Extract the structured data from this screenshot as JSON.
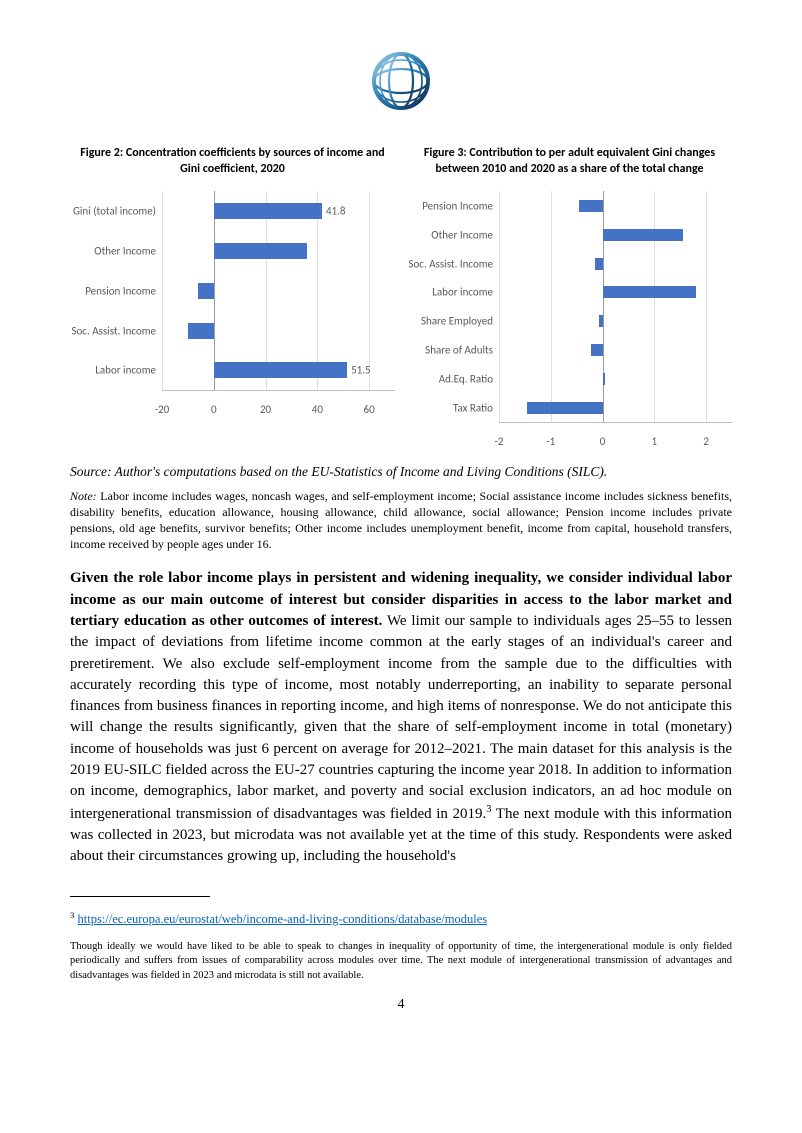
{
  "logo": {
    "name": "world-bank-globe-logo"
  },
  "figure2": {
    "title": "Figure 2: Concentration coefficients by sources of income and Gini coefficient, 2020",
    "type": "horizontal-bar",
    "xlim": [
      -20,
      70
    ],
    "xticks": [
      -20,
      0,
      20,
      40,
      60
    ],
    "bar_color": "#4472c4",
    "grid_color": "#e0e0e0",
    "axis_color": "#bfbfbf",
    "label_fontsize": 11,
    "label_color": "#595959",
    "rows": [
      {
        "label": "Gini (total income)",
        "value": 41.8,
        "show_value": "41.8"
      },
      {
        "label": "Other Income",
        "value": 36,
        "show_value": ""
      },
      {
        "label": "Pension Income",
        "value": -6,
        "show_value": ""
      },
      {
        "label": "Soc. Assist. Income",
        "value": -10,
        "show_value": ""
      },
      {
        "label": "Labor income",
        "value": 51.5,
        "show_value": "51.5"
      }
    ]
  },
  "figure3": {
    "title": "Figure 3: Contribution to per adult equivalent Gini changes between 2010 and 2020 as a share of the total change",
    "type": "horizontal-bar",
    "xlim": [
      -2,
      2.5
    ],
    "xticks": [
      -2,
      -1,
      0,
      1,
      2
    ],
    "bar_color": "#4472c4",
    "grid_color": "#e0e0e0",
    "axis_color": "#bfbfbf",
    "label_fontsize": 11,
    "label_color": "#595959",
    "rows": [
      {
        "label": "Pension Income",
        "value": -0.45
      },
      {
        "label": "Other Income",
        "value": 1.55
      },
      {
        "label": "Soc. Assist. Income",
        "value": -0.15
      },
      {
        "label": "Labor income",
        "value": 1.8
      },
      {
        "label": "Share Employed",
        "value": -0.07
      },
      {
        "label": "Share of Adults",
        "value": -0.22
      },
      {
        "label": "Ad.Eq. Ratio",
        "value": 0.05
      },
      {
        "label": "Tax Ratio",
        "value": -1.45
      }
    ]
  },
  "source": {
    "label": "Source:",
    "text": " Author's computations based on the EU-Statistics of Income and Living Conditions (SILC)."
  },
  "note": {
    "label": "Note:",
    "text": " Labor income includes wages, noncash wages, and self-employment income; Social assistance income includes sickness benefits, disability benefits, education allowance, housing allowance, child allowance, social allowance; Pension income includes private pensions, old age benefits, survivor benefits; Other income includes unemployment benefit, income from capital, household transfers, income received by people ages under 16."
  },
  "body": {
    "lead": "Given the role labor income plays in persistent and widening inequality, we consider individual labor income as our main outcome of interest but consider disparities in access to the labor market and tertiary education as other outcomes of interest.",
    "rest1": " We limit our sample to individuals ages 25–55 to lessen the impact of deviations from lifetime income common at the early stages of an individual's career and preretirement. We also exclude self-employment income from the sample due to the difficulties with accurately recording this type of income, most notably underreporting, an inability to separate personal finances from business finances in reporting income, and high items of nonresponse. We do not anticipate this will change the results significantly, given that the share of self-employment income in total (monetary) income of households was just 6 percent on average for 2012–2021. The main dataset for this analysis is the 2019 EU-SILC fielded across the EU-27 countries capturing the income year 2018. In addition to information on income, demographics, labor market, and poverty and social exclusion indicators, an ad hoc module on intergenerational transmission of disadvantages was fielded in 2019.",
    "sup": "3",
    "rest2": " The next module with this information was collected in 2023, but microdata was not available yet at the time of this study. Respondents were asked about their circumstances growing up, including the household's"
  },
  "footnote": {
    "num": "3",
    "url_text": "https://ec.europa.eu/eurostat/web/income-and-living-conditions/database/modules"
  },
  "endnote": {
    "text": "Though ideally we would have liked to be able to speak to changes in inequality of opportunity of time, the intergenerational module is only fielded periodically and suffers from issues of comparability across modules over time. The next module of intergenerational transmission of advantages and disadvantages was fielded in 2023 and microdata is still not available."
  },
  "page_number": "4"
}
